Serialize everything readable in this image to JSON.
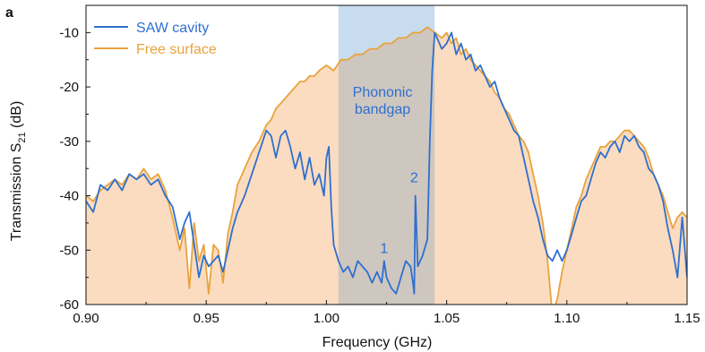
{
  "panel_label": "a",
  "chart_data": {
    "type": "line",
    "title": "",
    "xlabel": "Frequency (GHz)",
    "ylabel": {
      "main": "Transmission S",
      "sub": "21",
      "unit": " (dB)"
    },
    "xlim": [
      0.9,
      1.15
    ],
    "ylim": [
      -60,
      -5
    ],
    "xticks": [
      "0.90",
      "0.95",
      "1.00",
      "1.05",
      "1.10",
      "1.15"
    ],
    "yticks": [
      "-10",
      "-20",
      "-30",
      "-40",
      "-50",
      "-60"
    ],
    "grid": false,
    "legend_position": "top-left",
    "shaded_region": {
      "x_start": 1.005,
      "x_end": 1.045,
      "label_line1": "Phononic",
      "label_line2": "bandgap",
      "color": "#c7dcef"
    },
    "annotations": [
      {
        "text": "1",
        "x": 1.024,
        "y": -50.5
      },
      {
        "text": "2",
        "x": 1.0365,
        "y": -37.5
      }
    ],
    "colors": {
      "saw": "#2f6fcf",
      "free": "#e8a33d",
      "free_fill": "#fbdcc0",
      "overlap": "#cec7c0"
    },
    "series": [
      {
        "name": "SAW cavity",
        "x": [
          0.9,
          0.903,
          0.906,
          0.909,
          0.912,
          0.915,
          0.918,
          0.921,
          0.924,
          0.927,
          0.93,
          0.933,
          0.936,
          0.939,
          0.941,
          0.943,
          0.945,
          0.947,
          0.949,
          0.951,
          0.953,
          0.955,
          0.957,
          0.959,
          0.961,
          0.963,
          0.966,
          0.969,
          0.972,
          0.975,
          0.977,
          0.979,
          0.981,
          0.983,
          0.985,
          0.987,
          0.989,
          0.991,
          0.993,
          0.995,
          0.997,
          0.998,
          0.999,
          1.0,
          1.001,
          1.002,
          1.003,
          1.005,
          1.007,
          1.009,
          1.011,
          1.013,
          1.015,
          1.017,
          1.019,
          1.021,
          1.023,
          1.024,
          1.025,
          1.027,
          1.029,
          1.031,
          1.033,
          1.035,
          1.036,
          1.0365,
          1.037,
          1.038,
          1.04,
          1.042,
          1.043,
          1.044,
          1.045,
          1.046,
          1.048,
          1.05,
          1.052,
          1.054,
          1.056,
          1.058,
          1.06,
          1.062,
          1.064,
          1.066,
          1.068,
          1.07,
          1.072,
          1.074,
          1.076,
          1.078,
          1.08,
          1.082,
          1.084,
          1.086,
          1.088,
          1.09,
          1.092,
          1.094,
          1.096,
          1.098,
          1.1,
          1.102,
          1.104,
          1.106,
          1.108,
          1.11,
          1.112,
          1.114,
          1.116,
          1.118,
          1.12,
          1.122,
          1.124,
          1.126,
          1.128,
          1.13,
          1.132,
          1.134,
          1.136,
          1.138,
          1.14,
          1.142,
          1.144,
          1.146,
          1.148,
          1.15
        ],
        "y": [
          -41,
          -43,
          -38,
          -39,
          -37,
          -39,
          -36,
          -37,
          -36,
          -38,
          -37,
          -40,
          -42,
          -48,
          -45,
          -43,
          -49,
          -55,
          -51,
          -53,
          -52,
          -51,
          -54,
          -50,
          -46,
          -43,
          -40,
          -36,
          -32,
          -28,
          -29,
          -33,
          -29,
          -28,
          -31,
          -35,
          -32,
          -37,
          -33,
          -38,
          -36,
          -38,
          -40,
          -33,
          -31,
          -42,
          -49,
          -52,
          -54,
          -53,
          -55,
          -52,
          -53,
          -54,
          -56,
          -54,
          -56,
          -52,
          -55,
          -57,
          -58,
          -55,
          -52,
          -53,
          -56,
          -58,
          -40,
          -53,
          -51,
          -48,
          -30,
          -17,
          -10,
          -11,
          -13,
          -12,
          -10,
          -14,
          -12,
          -15,
          -14,
          -17,
          -16,
          -18,
          -20,
          -19,
          -22,
          -24,
          -26,
          -28,
          -29,
          -33,
          -37,
          -41,
          -44,
          -48,
          -51,
          -52,
          -50,
          -52,
          -50,
          -47,
          -44,
          -41,
          -40,
          -37,
          -34,
          -32,
          -33,
          -31,
          -30,
          -32,
          -29,
          -30,
          -29,
          -31,
          -32,
          -35,
          -36,
          -38,
          -41,
          -46,
          -50,
          -55,
          -44,
          -55
        ]
      },
      {
        "name": "Free surface",
        "x": [
          0.9,
          0.903,
          0.906,
          0.909,
          0.912,
          0.915,
          0.918,
          0.921,
          0.924,
          0.927,
          0.93,
          0.933,
          0.936,
          0.939,
          0.941,
          0.943,
          0.945,
          0.947,
          0.949,
          0.951,
          0.953,
          0.955,
          0.957,
          0.959,
          0.961,
          0.963,
          0.966,
          0.969,
          0.972,
          0.975,
          0.977,
          0.979,
          0.981,
          0.983,
          0.985,
          0.987,
          0.989,
          0.991,
          0.993,
          0.995,
          0.997,
          1.0,
          1.003,
          1.006,
          1.009,
          1.012,
          1.015,
          1.018,
          1.021,
          1.024,
          1.027,
          1.03,
          1.033,
          1.036,
          1.039,
          1.042,
          1.045,
          1.048,
          1.05,
          1.052,
          1.054,
          1.056,
          1.058,
          1.06,
          1.062,
          1.064,
          1.066,
          1.068,
          1.07,
          1.072,
          1.074,
          1.076,
          1.078,
          1.08,
          1.082,
          1.084,
          1.086,
          1.088,
          1.09,
          1.092,
          1.094,
          1.096,
          1.098,
          1.1,
          1.102,
          1.104,
          1.106,
          1.108,
          1.11,
          1.112,
          1.114,
          1.116,
          1.118,
          1.12,
          1.122,
          1.124,
          1.126,
          1.128,
          1.13,
          1.132,
          1.134,
          1.136,
          1.138,
          1.14,
          1.142,
          1.144,
          1.146,
          1.148,
          1.15
        ],
        "y": [
          -40,
          -41,
          -39,
          -38,
          -37,
          -38,
          -36,
          -37,
          -35,
          -37,
          -36,
          -39,
          -44,
          -50,
          -46,
          -57,
          -45,
          -52,
          -49,
          -58,
          -49,
          -50,
          -56,
          -47,
          -43,
          -38,
          -35,
          -32,
          -30,
          -27,
          -26,
          -24,
          -23,
          -22,
          -21,
          -20,
          -19,
          -19,
          -18,
          -18,
          -17,
          -16,
          -17,
          -15,
          -15,
          -14,
          -14,
          -13,
          -13,
          -12,
          -12,
          -11,
          -11,
          -10,
          -10,
          -9,
          -10,
          -11,
          -10,
          -12,
          -11,
          -14,
          -13,
          -15,
          -16,
          -17,
          -18,
          -19,
          -21,
          -22,
          -24,
          -25,
          -27,
          -29,
          -30,
          -32,
          -36,
          -40,
          -45,
          -52,
          -62,
          -59,
          -54,
          -50,
          -46,
          -42,
          -40,
          -37,
          -35,
          -33,
          -31,
          -31,
          -30,
          -30,
          -29,
          -28,
          -28,
          -29,
          -30,
          -31,
          -33,
          -36,
          -38,
          -40,
          -43,
          -46,
          -44,
          -43,
          -44
        ]
      }
    ]
  }
}
